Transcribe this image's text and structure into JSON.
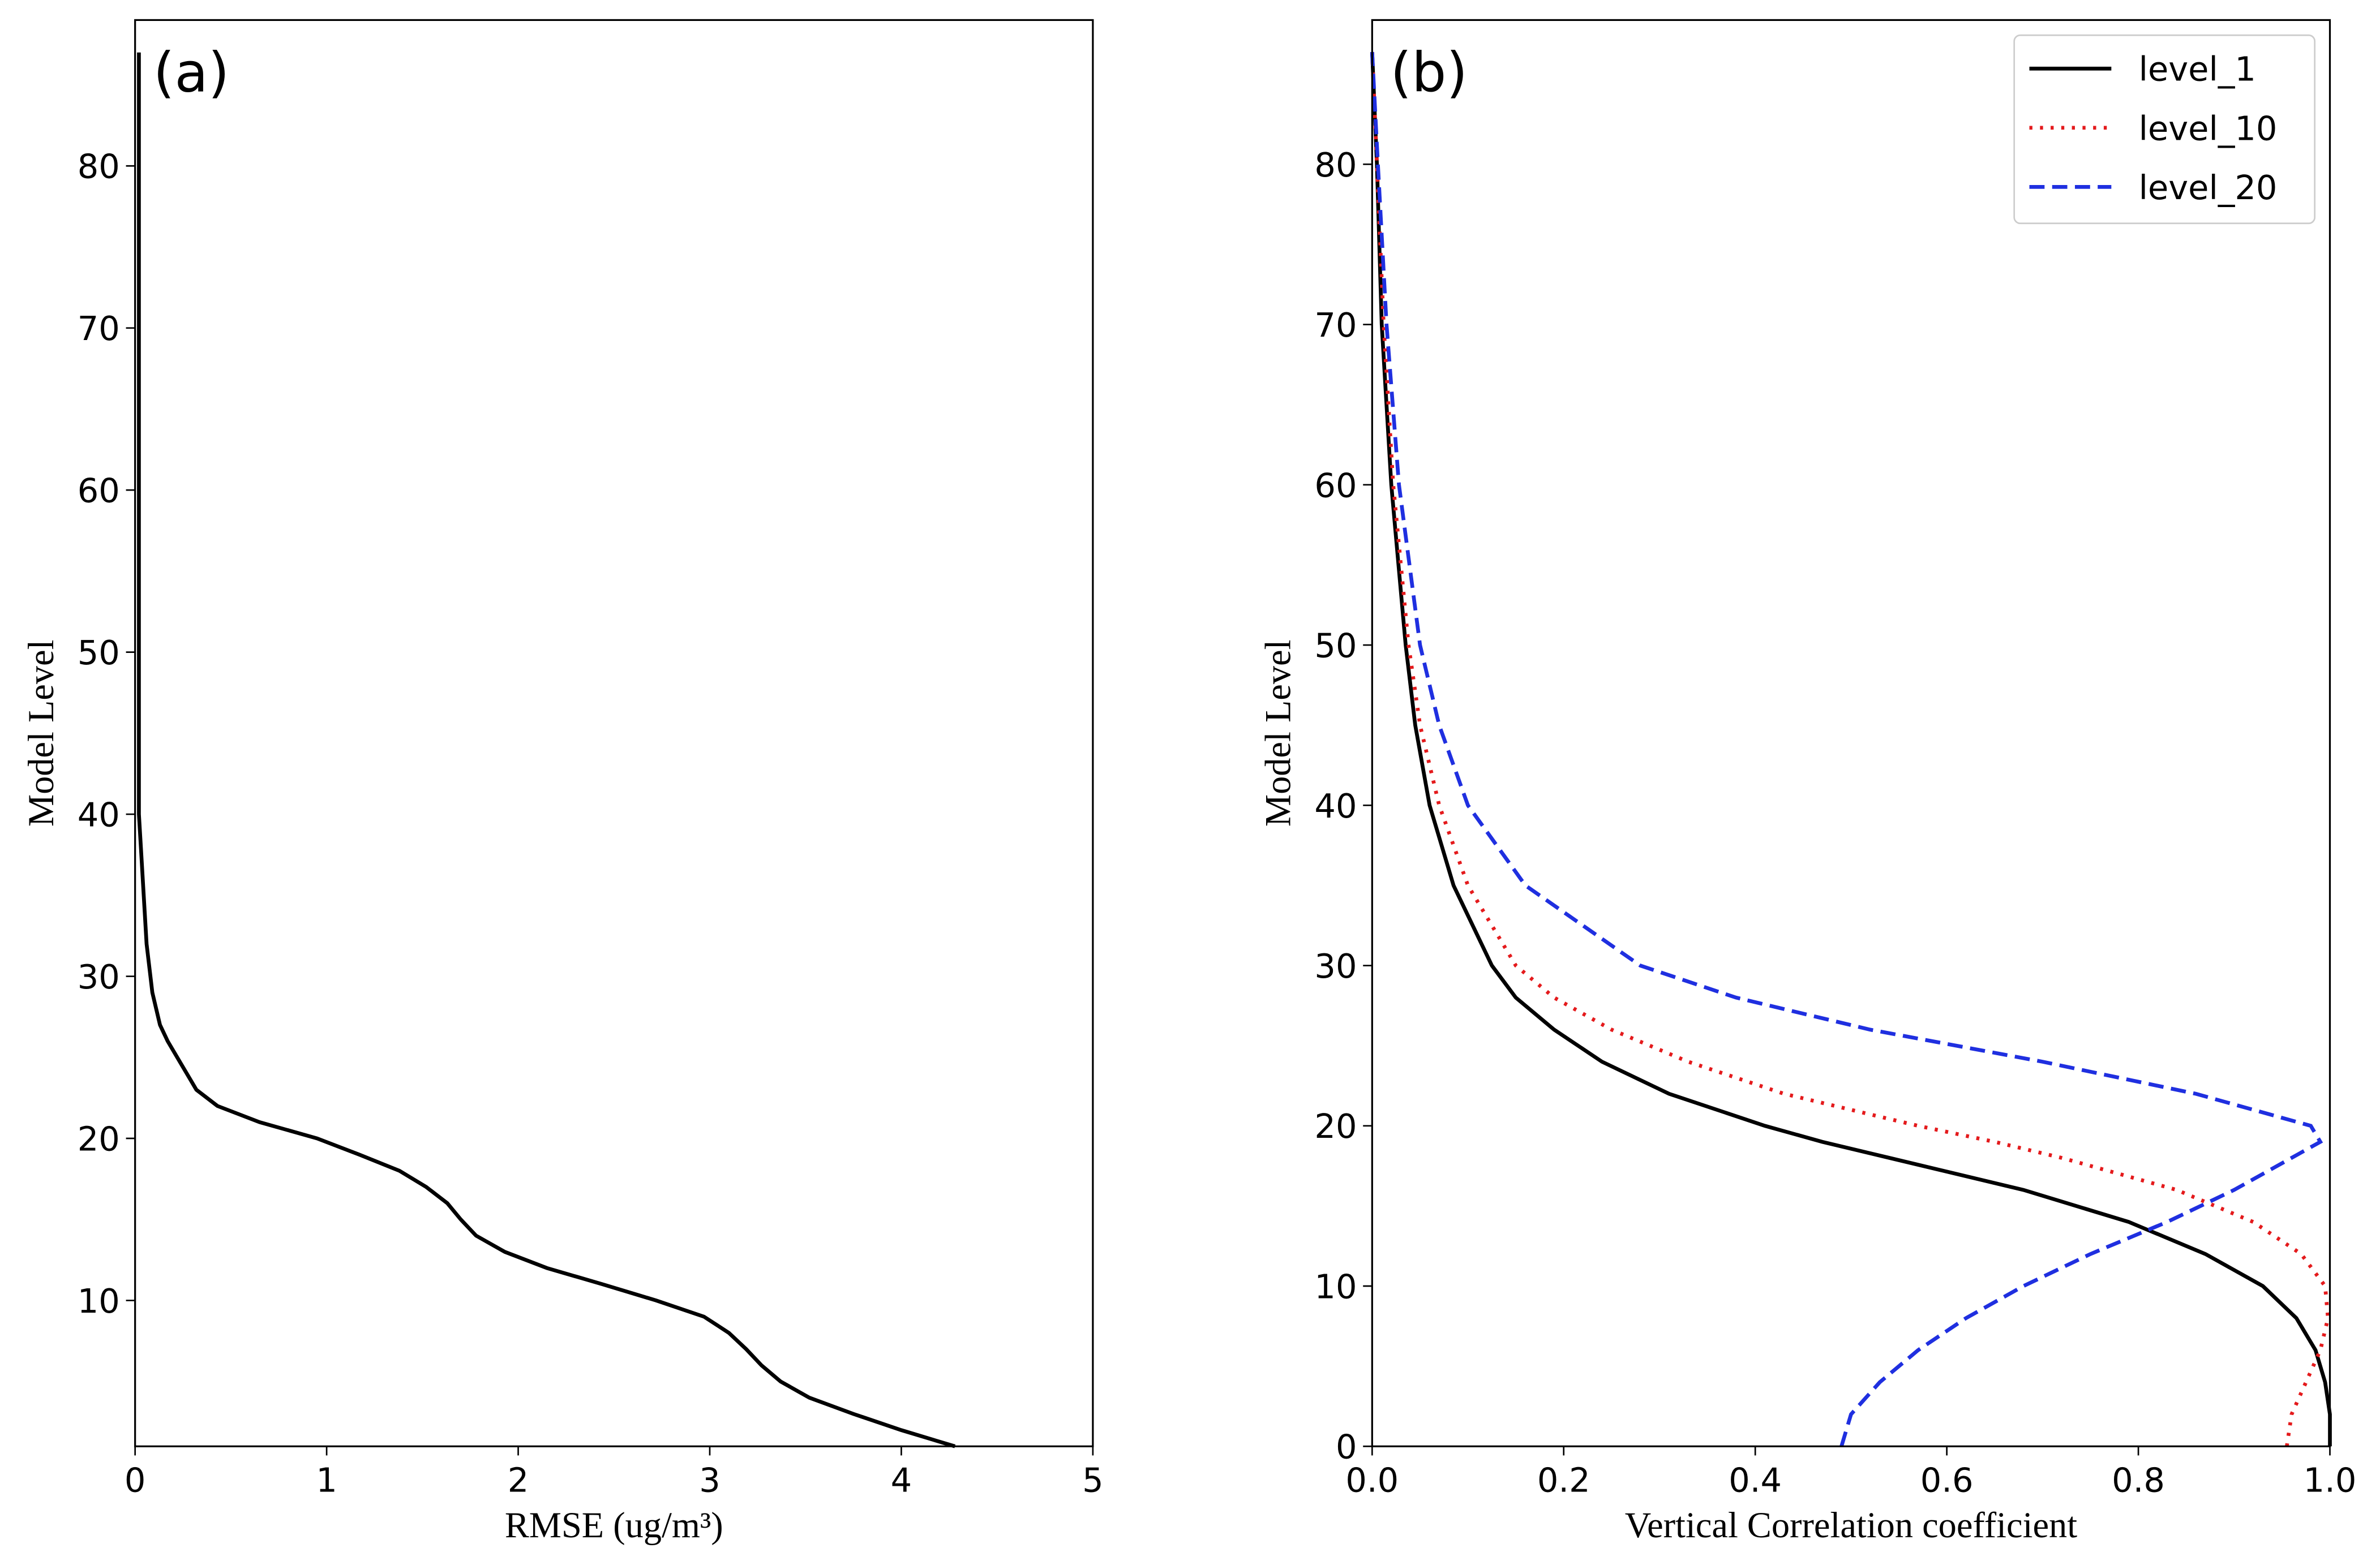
{
  "chart_data": [
    {
      "type": "line",
      "label": "(a)",
      "xlabel": "RMSE (ug/m³)",
      "ylabel": "Model Level",
      "y": [
        1,
        2,
        3,
        4,
        5,
        6,
        7,
        8,
        9,
        10,
        11,
        12,
        13,
        14,
        15,
        16,
        17,
        18,
        19,
        20,
        21,
        22,
        23,
        24,
        25,
        26,
        27,
        28,
        29,
        30,
        31,
        32,
        34,
        36,
        38,
        40,
        45,
        50,
        60,
        70,
        80,
        87
      ],
      "series": [
        {
          "name": "RMSE",
          "color": "#000000",
          "linestyle": "solid",
          "values": [
            4.28,
            4.0,
            3.75,
            3.52,
            3.37,
            3.27,
            3.19,
            3.1,
            2.97,
            2.72,
            2.44,
            2.15,
            1.93,
            1.78,
            1.7,
            1.63,
            1.52,
            1.38,
            1.17,
            0.95,
            0.65,
            0.43,
            0.32,
            0.27,
            0.22,
            0.17,
            0.13,
            0.11,
            0.09,
            0.08,
            0.07,
            0.06,
            0.05,
            0.04,
            0.03,
            0.02,
            0.02,
            0.02,
            0.02,
            0.02,
            0.02,
            0.02
          ]
        }
      ],
      "xlim": [
        0,
        5
      ],
      "xticks": [
        0,
        1,
        2,
        3,
        4,
        5
      ],
      "ylim": [
        1,
        89
      ],
      "yticks": [
        10,
        20,
        30,
        40,
        50,
        60,
        70,
        80
      ],
      "legend": false
    },
    {
      "type": "line",
      "label": "(b)",
      "xlabel": "Vertical Correlation coefficient",
      "ylabel": "Model Level",
      "y": [
        0,
        2,
        4,
        6,
        8,
        10,
        12,
        14,
        16,
        18,
        19,
        20,
        22,
        24,
        26,
        28,
        30,
        35,
        40,
        45,
        50,
        60,
        70,
        80,
        87
      ],
      "series": [
        {
          "name": "level_1",
          "color": "#000000",
          "linestyle": "solid",
          "values": [
            1.0,
            1.0,
            0.995,
            0.985,
            0.965,
            0.93,
            0.87,
            0.79,
            0.68,
            0.54,
            0.47,
            0.41,
            0.31,
            0.24,
            0.19,
            0.15,
            0.125,
            0.085,
            0.06,
            0.045,
            0.035,
            0.02,
            0.01,
            0.005,
            0
          ]
        },
        {
          "name": "level_10",
          "color": "#e41a1c",
          "linestyle": "dotted",
          "values": [
            0.955,
            0.96,
            0.975,
            0.99,
            0.998,
            0.995,
            0.97,
            0.92,
            0.84,
            0.72,
            0.65,
            0.57,
            0.43,
            0.33,
            0.25,
            0.19,
            0.15,
            0.1,
            0.07,
            0.05,
            0.038,
            0.022,
            0.012,
            0.005,
            0
          ]
        },
        {
          "name": "level_20",
          "color": "#1f2fe0",
          "linestyle": "dashed",
          "values": [
            0.49,
            0.5,
            0.53,
            0.57,
            0.62,
            0.68,
            0.75,
            0.83,
            0.9,
            0.96,
            0.99,
            0.98,
            0.86,
            0.7,
            0.52,
            0.38,
            0.28,
            0.16,
            0.1,
            0.07,
            0.05,
            0.028,
            0.015,
            0.006,
            0
          ]
        }
      ],
      "xlim": [
        0,
        1
      ],
      "xticks": [
        {
          "value": 0,
          "label": "0.0"
        },
        {
          "value": 0.2,
          "label": "0.2"
        },
        {
          "value": 0.4,
          "label": "0.4"
        },
        {
          "value": 0.6,
          "label": "0.6"
        },
        {
          "value": 0.8,
          "label": "0.8"
        },
        {
          "value": 1,
          "label": "1.0"
        }
      ],
      "ylim": [
        0,
        89
      ],
      "yticks": [
        0,
        10,
        20,
        30,
        40,
        50,
        60,
        70,
        80
      ],
      "legend": "upper right"
    }
  ]
}
